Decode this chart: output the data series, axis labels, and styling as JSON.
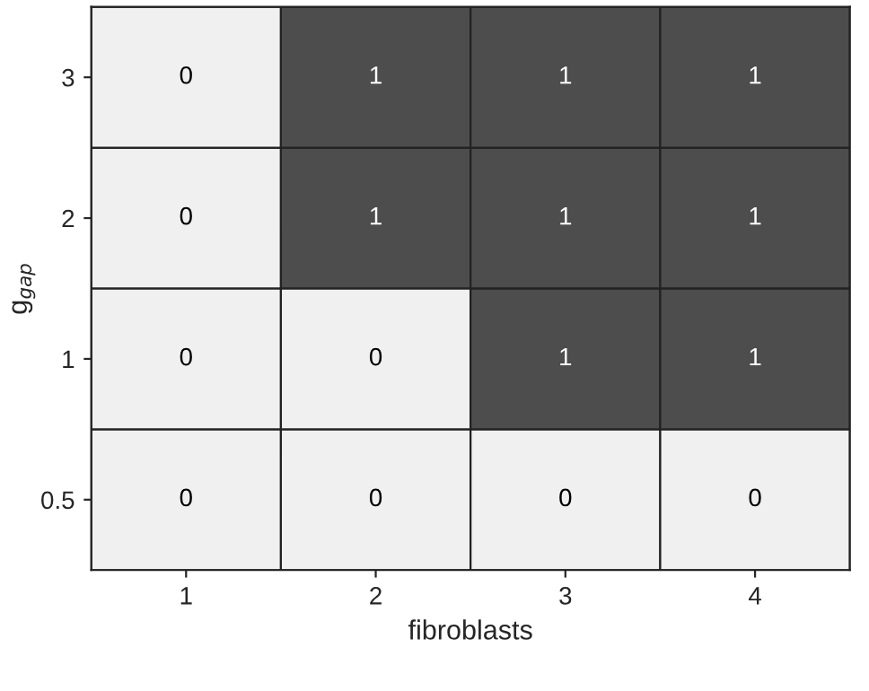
{
  "chart_data": {
    "type": "heatmap",
    "xlabel": "fibroblasts",
    "ylabel": "g$_{gap}$",
    "categories": [
      "1",
      "2",
      "3",
      "4"
    ],
    "y_categories": [
      "3",
      "2",
      "1",
      "0.5"
    ],
    "cells": [
      [
        0,
        1,
        1,
        1
      ],
      [
        0,
        1,
        1,
        1
      ],
      [
        0,
        0,
        1,
        1
      ],
      [
        0,
        0,
        0,
        0
      ]
    ],
    "colors": [
      "#f0f0f0",
      "#4d4d4d"
    ],
    "data_labels": true
  }
}
